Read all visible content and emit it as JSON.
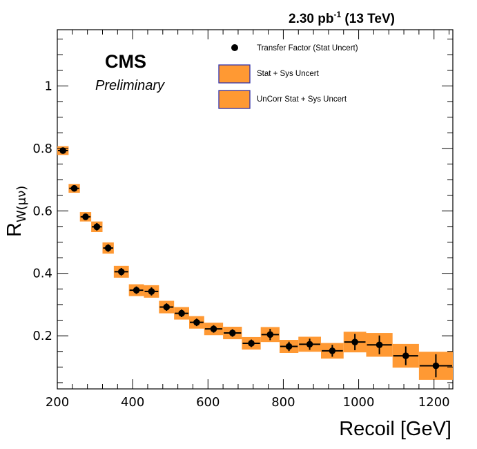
{
  "header": {
    "lumi": "2.30 pb",
    "lumi_sup": "-1",
    "energy": " (13 TeV)"
  },
  "labels": {
    "experiment": "CMS",
    "status": "Preliminary"
  },
  "legend": {
    "position": "top-right",
    "entries": [
      {
        "label": "Transfer Factor (Stat Uncert)",
        "style": "marker"
      },
      {
        "label": "Stat + Sys Uncert",
        "style": "box"
      },
      {
        "label": "UnCorr Stat + Sys Uncert",
        "style": "box"
      }
    ]
  },
  "colors": {
    "band": "#FF9933",
    "band_edge": "#3333aa",
    "marker": "#000000"
  },
  "chart_data": {
    "type": "scatter",
    "xlabel": "Recoil [GeV]",
    "ylabel_main": "R",
    "ylabel_sub": "W(μν)",
    "xlim": [
      200,
      1250
    ],
    "ylim": [
      0.03,
      1.18
    ],
    "x_ticks": [
      200,
      400,
      600,
      800,
      1000,
      1200
    ],
    "y_ticks": [
      0.2,
      0.4,
      0.6,
      0.8,
      1
    ],
    "series": [
      {
        "name": "Transfer Factor (Stat Uncert)",
        "bins": [
          {
            "lo": 200,
            "hi": 230,
            "y": 0.793,
            "err": 0.01,
            "band": 0.014
          },
          {
            "lo": 230,
            "hi": 260,
            "y": 0.672,
            "err": 0.01,
            "band": 0.014
          },
          {
            "lo": 260,
            "hi": 290,
            "y": 0.581,
            "err": 0.01,
            "band": 0.015
          },
          {
            "lo": 290,
            "hi": 320,
            "y": 0.549,
            "err": 0.012,
            "band": 0.017
          },
          {
            "lo": 320,
            "hi": 350,
            "y": 0.481,
            "err": 0.012,
            "band": 0.018
          },
          {
            "lo": 350,
            "hi": 390,
            "y": 0.405,
            "err": 0.012,
            "band": 0.019
          },
          {
            "lo": 390,
            "hi": 430,
            "y": 0.346,
            "err": 0.012,
            "band": 0.019
          },
          {
            "lo": 430,
            "hi": 470,
            "y": 0.342,
            "err": 0.013,
            "band": 0.02
          },
          {
            "lo": 470,
            "hi": 510,
            "y": 0.292,
            "err": 0.012,
            "band": 0.02
          },
          {
            "lo": 510,
            "hi": 550,
            "y": 0.272,
            "err": 0.012,
            "band": 0.02
          },
          {
            "lo": 550,
            "hi": 590,
            "y": 0.243,
            "err": 0.012,
            "band": 0.02
          },
          {
            "lo": 590,
            "hi": 640,
            "y": 0.222,
            "err": 0.012,
            "band": 0.02
          },
          {
            "lo": 640,
            "hi": 690,
            "y": 0.209,
            "err": 0.012,
            "band": 0.02
          },
          {
            "lo": 690,
            "hi": 740,
            "y": 0.176,
            "err": 0.012,
            "band": 0.02
          },
          {
            "lo": 740,
            "hi": 790,
            "y": 0.204,
            "err": 0.018,
            "band": 0.024
          },
          {
            "lo": 790,
            "hi": 840,
            "y": 0.166,
            "err": 0.015,
            "band": 0.021
          },
          {
            "lo": 840,
            "hi": 900,
            "y": 0.173,
            "err": 0.018,
            "band": 0.024
          },
          {
            "lo": 900,
            "hi": 960,
            "y": 0.152,
            "err": 0.019,
            "band": 0.025
          },
          {
            "lo": 960,
            "hi": 1020,
            "y": 0.18,
            "err": 0.026,
            "band": 0.033
          },
          {
            "lo": 1020,
            "hi": 1090,
            "y": 0.171,
            "err": 0.03,
            "band": 0.038
          },
          {
            "lo": 1090,
            "hi": 1160,
            "y": 0.136,
            "err": 0.03,
            "band": 0.038
          },
          {
            "lo": 1160,
            "hi": 1250,
            "y": 0.104,
            "err": 0.037,
            "band": 0.045
          }
        ]
      }
    ]
  }
}
